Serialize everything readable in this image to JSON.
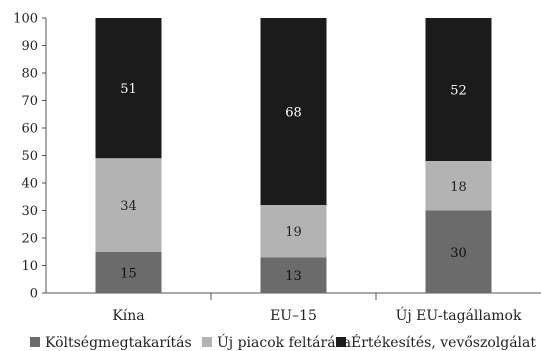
{
  "chart_data": {
    "type": "bar",
    "stacked": true,
    "categories": [
      "Kína",
      "EU–15",
      "Új EU-tagállamok"
    ],
    "series": [
      {
        "name": "Költségmegtakarítás",
        "values": [
          15,
          13,
          30
        ],
        "color": "#6b6b6b",
        "label_color": "#111111"
      },
      {
        "name": "Új piacok feltárása",
        "values": [
          34,
          19,
          18
        ],
        "color": "#b3b3b4",
        "label_color": "#222222"
      },
      {
        "name": "Értékesítés, vevőszolgálat",
        "values": [
          51,
          68,
          52
        ],
        "color": "#1c1b1c",
        "label_color": "#ffffff"
      }
    ],
    "ylim": [
      0,
      100
    ],
    "yticks": [
      0,
      10,
      20,
      30,
      40,
      50,
      60,
      70,
      80,
      90,
      100
    ],
    "grid": false,
    "legend_position": "bottom"
  }
}
